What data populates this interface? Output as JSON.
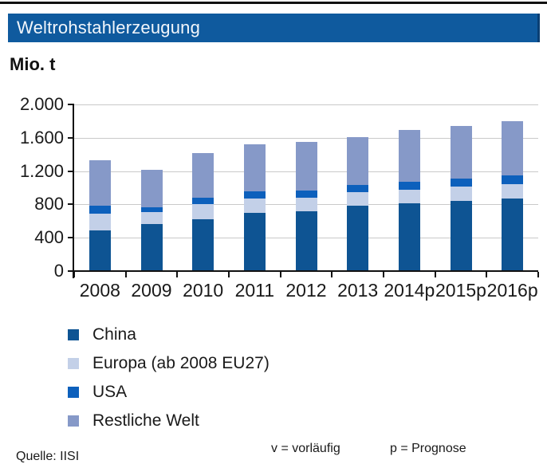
{
  "header": {
    "title": "Weltrohstahlerzeugung"
  },
  "unit_label": "Mio. t",
  "colors": {
    "title_bar_bg": "#0f5a9e",
    "title_bar_edge": "#0a3f73",
    "top_rule": "#111111",
    "gridline": "#c9c9c9",
    "axis": "#111111"
  },
  "chart_data": {
    "type": "bar",
    "stacked": true,
    "title": "Weltrohstahlerzeugung",
    "ylabel": "Mio. t",
    "xlabel": "",
    "ylim": [
      0,
      2000
    ],
    "grid": true,
    "legend_position": "bottom-left",
    "categories": [
      "2008",
      "2009",
      "2010",
      "2011",
      "2012",
      "2013",
      "2014p",
      "2015p",
      "2016p"
    ],
    "series": [
      {
        "name": "China",
        "color": "#0e5493",
        "values": [
          490,
          565,
          625,
          695,
          715,
          780,
          810,
          840,
          870
        ]
      },
      {
        "name": "Europa (ab 2008 EU27)",
        "color": "#c3d0e8",
        "values": [
          200,
          140,
          175,
          175,
          165,
          165,
          170,
          175,
          175
        ]
      },
      {
        "name": "USA",
        "color": "#0d60bc",
        "values": [
          90,
          60,
          80,
          85,
          90,
          90,
          90,
          95,
          105
        ]
      },
      {
        "name": "Restliche Welt",
        "color": "#8699c8",
        "values": [
          550,
          455,
          535,
          570,
          580,
          575,
          625,
          635,
          650
        ]
      }
    ],
    "totals": [
      1330,
      1220,
      1415,
      1525,
      1550,
      1610,
      1695,
      1745,
      1800
    ],
    "ytick_values": [
      0,
      400,
      800,
      1200,
      1600,
      2000
    ],
    "ytick_labels": [
      "0",
      "400",
      "800",
      "1.200",
      "1.600",
      "2.000"
    ]
  },
  "footer": {
    "source": "Quelle: IISI",
    "note_v": "v = vorläufig",
    "note_p": "p = Prognose"
  }
}
